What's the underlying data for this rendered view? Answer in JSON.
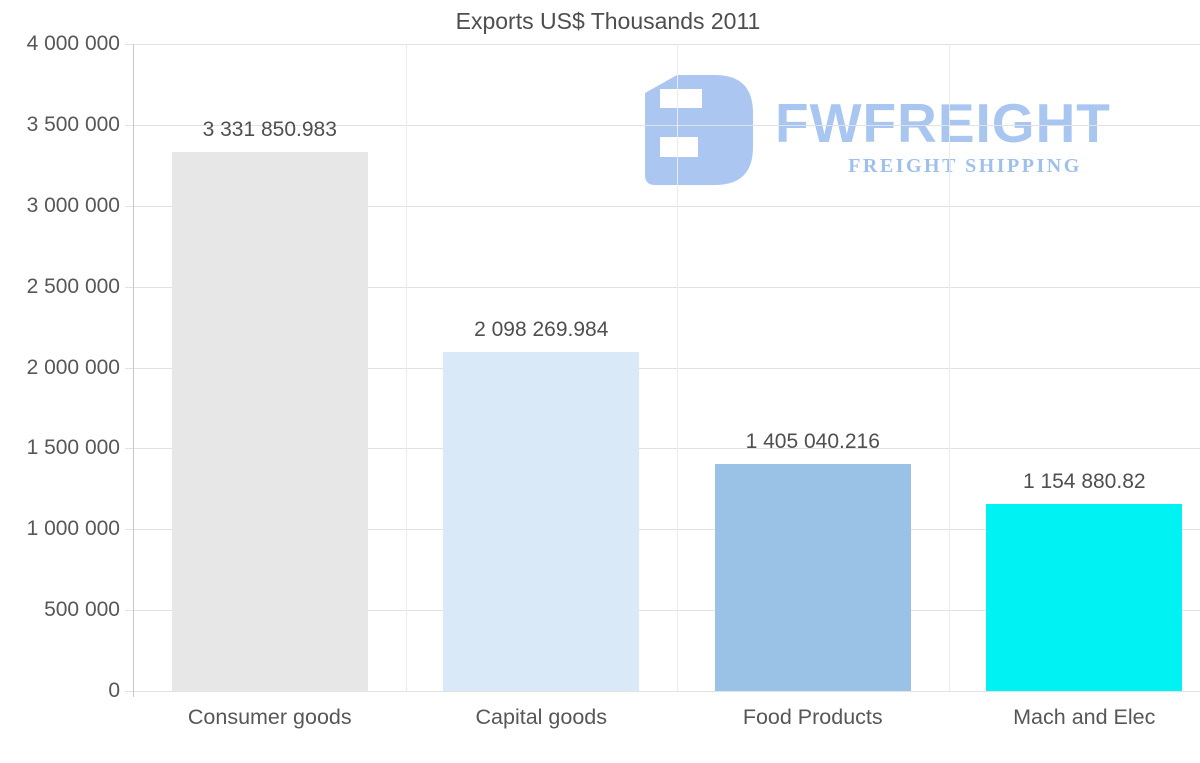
{
  "chart_data": {
    "type": "bar",
    "title": "Exports US$ Thousands 2011",
    "categories": [
      "Consumer goods",
      "Capital goods",
      "Food Products",
      "Mach and Elec"
    ],
    "values": [
      3331850.983,
      2098269.984,
      1405040.216,
      1154880.82
    ],
    "value_labels": [
      "3 331 850.983",
      "2 098 269.984",
      "1 405 040.216",
      "1 154 880.82"
    ],
    "bar_colors": [
      "#e7e7e7",
      "#d9e9f8",
      "#99c2e6",
      "#00f2f2"
    ],
    "xlabel": "",
    "ylabel": "",
    "ylim": [
      0,
      4000000
    ],
    "yticks": {
      "values": [
        0,
        500000,
        1000000,
        1500000,
        2000000,
        2500000,
        3000000,
        3500000,
        4000000
      ],
      "labels": [
        "0",
        "500 000",
        "1 000 000",
        "1 500 000",
        "2 000 000",
        "2 500 000",
        "3 000 000",
        "3 500 000",
        "4 000 000"
      ]
    },
    "grid": true,
    "legend_position": "none",
    "label_color": "#575757",
    "title_color": "#4e4e4e",
    "gridline_color": "#e2e2e2",
    "axis_color": "#c9c9c9"
  },
  "watermark": {
    "brand": "FWFREIGHT",
    "tagline": "FREIGHT SHIPPING",
    "brand_color": "#a9c6f0"
  }
}
